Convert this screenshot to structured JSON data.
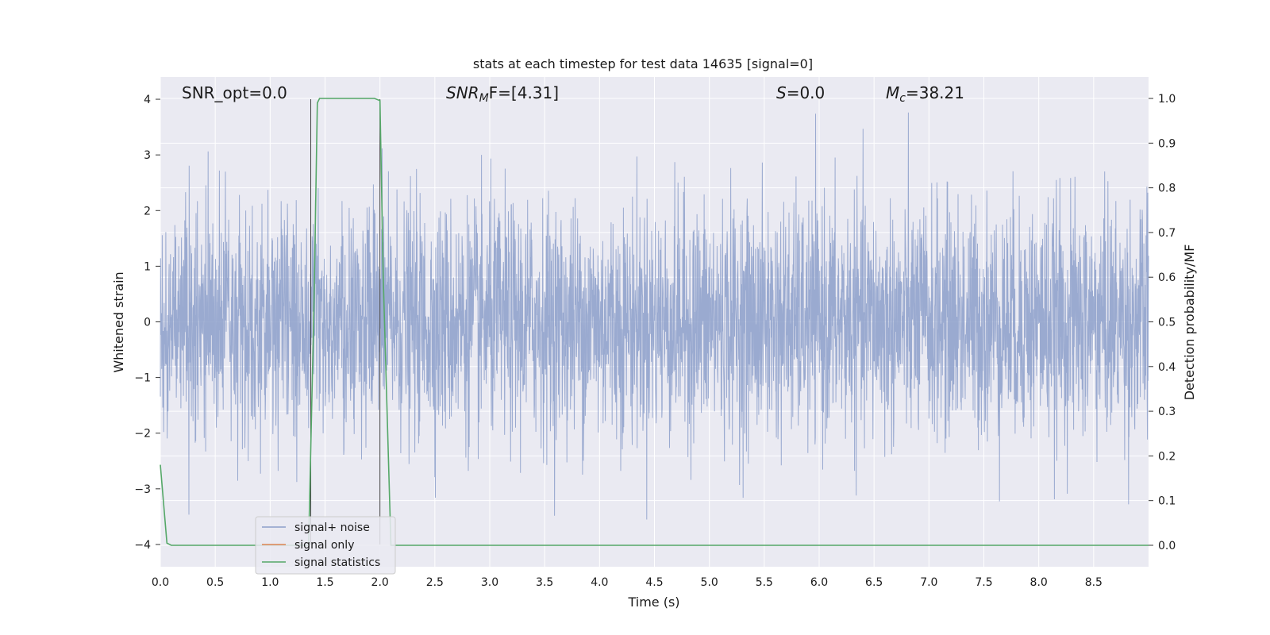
{
  "chart_data": {
    "type": "line",
    "title": "stats at each timestep for test data 14635 [signal=0]",
    "xlabel": "Time (s)",
    "ylabel": "Whitened strain",
    "ylabel_right": "Detection probability/MF",
    "xlim": [
      0.0,
      9.0
    ],
    "ylim": [
      -4.4,
      4.4
    ],
    "ylim_right": [
      -0.048,
      1.048
    ],
    "x_ticks": [
      "0.0",
      "0.5",
      "1.0",
      "1.5",
      "2.0",
      "2.5",
      "3.0",
      "3.5",
      "4.0",
      "4.5",
      "5.0",
      "5.5",
      "6.0",
      "6.5",
      "7.0",
      "7.5",
      "8.0",
      "8.5"
    ],
    "y_ticks": [
      "−4",
      "−3",
      "−2",
      "−1",
      "0",
      "1",
      "2",
      "3",
      "4"
    ],
    "y_ticks_right": [
      "0.0",
      "0.1",
      "0.2",
      "0.3",
      "0.4",
      "0.5",
      "0.6",
      "0.7",
      "0.8",
      "0.9",
      "1.0"
    ],
    "grid": true,
    "background": "#eaeaf2",
    "legend_position": "lower-left",
    "annotations": {
      "snr_opt": "SNR_opt=0.0",
      "snr_mf_main": "SNR",
      "snr_mf_sub": "M",
      "snr_mf_rest": "F=[4.31]",
      "s_var": "S",
      "s_rest": "=0.0",
      "mc_var": "M",
      "mc_sub": "c",
      "mc_rest": "=38.21"
    },
    "series": [
      {
        "name": "signal+ noise",
        "color": "#8c9fca",
        "description_range": [
          -3.7,
          4.0
        ],
        "x_range": [
          0.0,
          9.0
        ]
      },
      {
        "name": "signal only",
        "color": "#dd8452",
        "x": [],
        "y": []
      },
      {
        "name": "signal statistics",
        "color": "#55a868",
        "axis": "right",
        "x": [
          0.0,
          0.06,
          0.1,
          0.15,
          0.5,
          1.0,
          1.35,
          1.4,
          1.43,
          1.45,
          1.5,
          1.7,
          1.9,
          1.95,
          2.0,
          2.03,
          2.1,
          2.5,
          3.0,
          4.0,
          5.0,
          6.0,
          7.0,
          8.0,
          9.0
        ],
        "y": [
          0.18,
          0.005,
          0.0,
          0.0,
          0.0,
          0.0,
          0.0,
          0.55,
          0.99,
          1.0,
          1.0,
          1.0,
          1.0,
          1.0,
          0.995,
          0.6,
          0.0,
          0.0,
          0.0,
          0.0,
          0.0,
          0.0,
          0.0,
          0.0,
          0.0
        ]
      }
    ]
  }
}
